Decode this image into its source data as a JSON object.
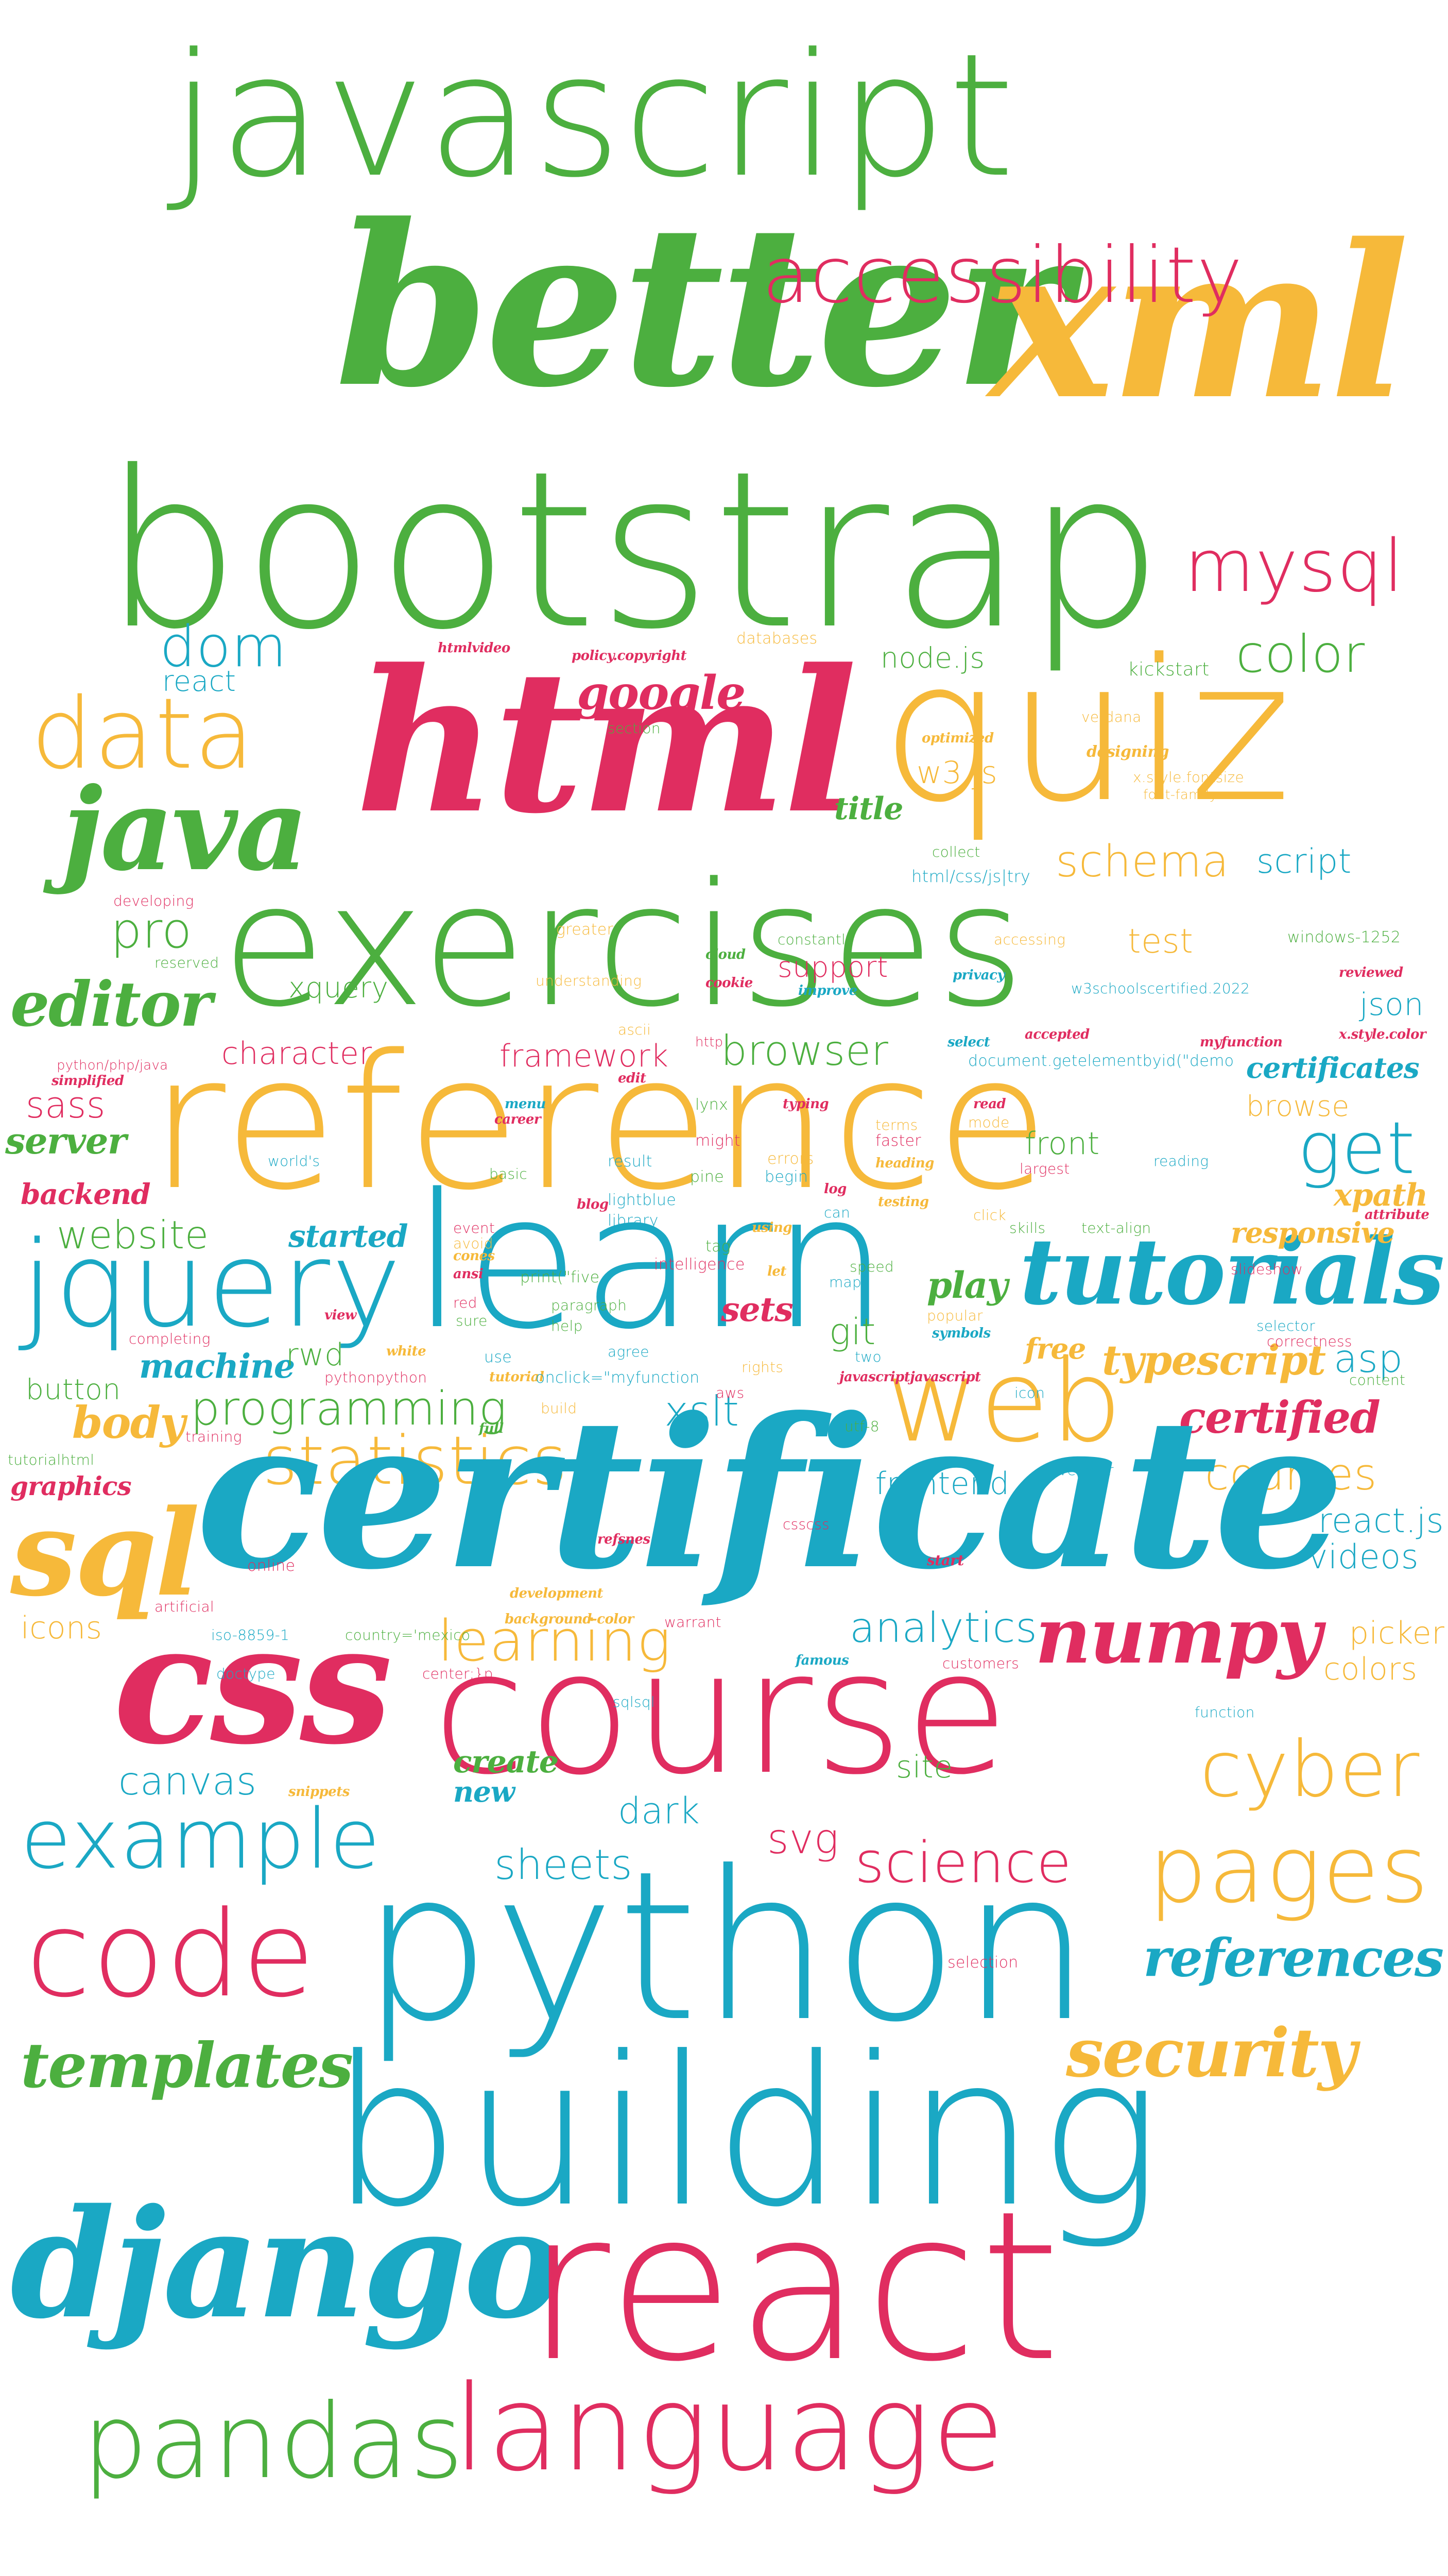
{
  "colors": {
    "green": "#4caf3f",
    "pink": "#e02d60",
    "blue": "#1aa8c4",
    "yellow": "#f6b93a"
  },
  "words": {
    "javascript": "javascript",
    "better": "better",
    "xml": "xml",
    "accessibility": "accessibility",
    "bootstrap": "bootstrap",
    "mysql": "mysql",
    "dom": "dom",
    "color": "color",
    "react_small": "react",
    "google": "google",
    "data": "data",
    "html": "html",
    "quiz": "quiz",
    "nodejs": "node.js",
    "kickstart": "kickstart",
    "java": "java",
    "w3js": "w3.js",
    "schema": "schema",
    "title": "title",
    "script": "script",
    "exercises": "exercises",
    "pro": "pro",
    "editor": "editor",
    "xquery": "xquery",
    "support": "support",
    "test": "test",
    "json": "json",
    "character": "character",
    "framework": "framework",
    "browser": "browser",
    "certificates": "certificates",
    "reference": "reference",
    "sass": "sass",
    "server": "server",
    "get": "get",
    "browse": "browse",
    "front": "front",
    "backend": "backend",
    "xpath": "xpath",
    "website": "website",
    "learn": "learn",
    "jquery": "jquery",
    "tutorials": "tutorials",
    "responsive": "responsive",
    "started": "started",
    "sets": "sets",
    "play": "play",
    "git": "git",
    "machine": "machine",
    "rwd": "rwd",
    "typescript": "typescript",
    "asp": "asp",
    "free": "free",
    "programming": "programming",
    "button": "button",
    "web": "web",
    "xslt": "xslt",
    "certified": "certified",
    "body": "body",
    "statistics": "statistics",
    "courses": "courses",
    "graphics": "graphics",
    "frontend": "frontend",
    "sql": "sql",
    "certificate": "certificate",
    "reactjs": "react.js",
    "videos": "videos",
    "picker": "picker",
    "colors": "colors",
    "icons": "icons",
    "analytics": "analytics",
    "numpy": "numpy",
    "learning": "learning",
    "css": "css",
    "course": "course",
    "canvas": "canvas",
    "dark": "dark",
    "create": "create",
    "new": "new",
    "cyber": "cyber",
    "site": "site",
    "example": "example",
    "sheets": "sheets",
    "svg": "svg",
    "science": "science",
    "pages": "pages",
    "code": "code",
    "python": "python",
    "references": "references",
    "templates": "templates",
    "security": "security",
    "building": "building",
    "django": "django",
    "react": "react",
    "pandas": "pandas",
    "language": "language",
    "htmlvideo": "htmlvideo",
    "policy": "policy.copyright",
    "databases": "databases",
    "section": "section",
    "verdana": "verdana",
    "optimized": "optimized",
    "designing": "designing",
    "xstylefontsize": "x.style.fontsize",
    "fontfamily": "font-family",
    "collect": "collect",
    "htmlcss": "html/css/js|try",
    "developing": "developing",
    "greater": "greater",
    "constantly": "constantly",
    "cloud": "cloud",
    "accessing": "accessing",
    "windows1252": "windows-1252",
    "reserved": "reserved",
    "understanding": "understanding",
    "cookie": "cookie",
    "improve": "improve",
    "privacy": "privacy",
    "reviewed": "reviewed",
    "w3cert": "w3schoolscertified.2022",
    "ascii": "ascii",
    "http": "http",
    "select": "select",
    "accepted": "accepted",
    "myfunction": "myfunction",
    "xstylecolor": "x.style.color",
    "pythonphp": "python/php/java",
    "edit": "edit",
    "docgetel": "document.getelementbyid(\"demo",
    "simplified": "simplified",
    "menu": "menu",
    "career": "career",
    "lynx": "lynx",
    "typing": "typing",
    "read": "read",
    "mode": "mode",
    "might": "might",
    "faster": "faster",
    "heading": "heading",
    "worlds": "world's",
    "basic": "basic",
    "result": "result",
    "pine": "pine",
    "errors": "errors",
    "begin": "begin",
    "largest": "largest",
    "reading": "reading",
    "blog": "blog",
    "lightblue": "lightblue",
    "log": "log",
    "testing": "testing",
    "can": "can",
    "library": "library",
    "using": "using",
    "click": "click",
    "event": "event",
    "tag": "tag",
    "skills": "skills",
    "textalign": "text-align",
    "attribute": "attribute",
    "avoid": "avoid",
    "intelligence": "intelligence",
    "speed": "speed",
    "ansi": "ansi",
    "cones": "cones",
    "maps": "maps",
    "slideshow": "slideshow",
    "let": "let",
    "printfive": "print(\"five",
    "red": "red",
    "paragraph": "paragraph",
    "popular": "popular",
    "sure": "sure",
    "view": "view",
    "help": "help",
    "symbols": "symbols",
    "selector": "selector",
    "completing": "completing",
    "agree": "agree",
    "correctness": "correctness",
    "white": "white",
    "use": "use",
    "two": "two",
    "rights": "rights",
    "pythonpython": "pythonpython",
    "tutorial": "tutorial",
    "onclick": "onclick=\"myfunction",
    "jsjs": "javascriptjavascript",
    "content": "content",
    "aws": "aws",
    "full": "full",
    "training": "training",
    "utf8": "utf-8",
    "tutorialhtml": "tutorialhtml",
    "developer": "developer",
    "csscss": "csscss",
    "refsnes": "refsnes",
    "start": "start",
    "online": "online",
    "development": "development",
    "artificial": "artificial",
    "bgcolor": "background-color",
    "warrant": "warrant",
    "iso": "iso-8859-1",
    "countrymexico": "country='mexico",
    "famous": "famous",
    "customers": "customers",
    "doctype": "doctype",
    "centerp": "center;}p",
    "function": "function",
    "snippets": "snippets",
    "sqlsql": "sqlsql",
    "build": "build",
    "icon": "icon",
    "selection": "selection",
    "terms": "terms"
  }
}
